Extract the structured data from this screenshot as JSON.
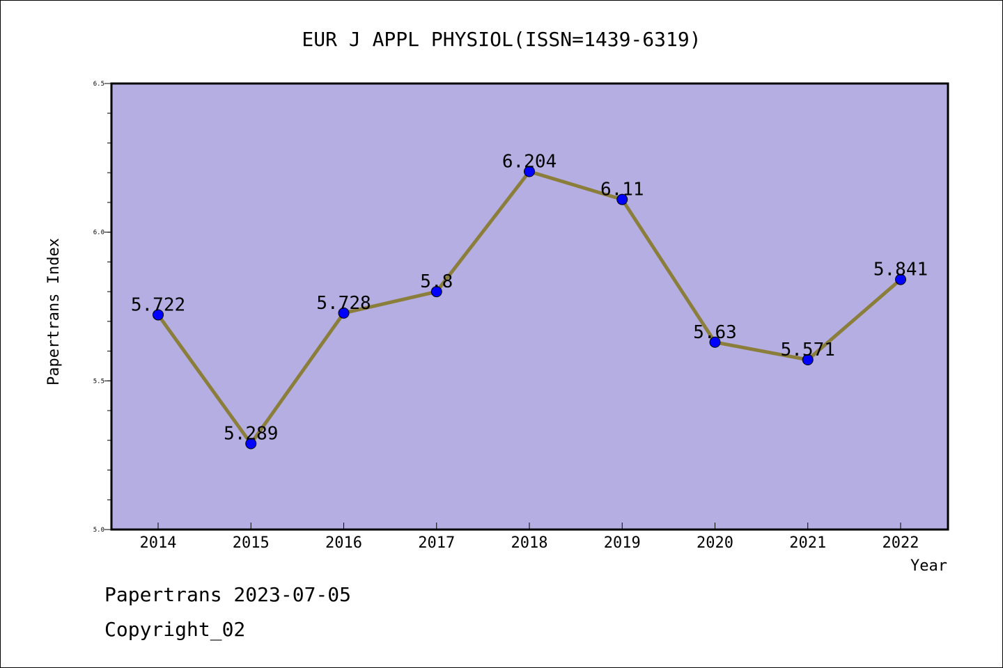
{
  "chart_data": {
    "type": "line",
    "title": "EUR J APPL PHYSIOL(ISSN=1439-6319)",
    "xlabel": "Year",
    "ylabel": "Papertrans Index",
    "categories": [
      "2014",
      "2015",
      "2016",
      "2017",
      "2018",
      "2019",
      "2020",
      "2021",
      "2022"
    ],
    "values": [
      5.722,
      5.289,
      5.728,
      5.8,
      6.204,
      6.11,
      5.63,
      5.571,
      5.841
    ],
    "value_labels": [
      "5.722",
      "5.289",
      "5.728",
      "5.8",
      "6.204",
      "6.11",
      "5.63",
      "5.571",
      "5.841"
    ],
    "ylim": [
      5.0,
      6.5
    ],
    "yticks": [
      5.0,
      5.5,
      6.0,
      6.5
    ],
    "ytick_labels": [
      "5.0",
      "5.5",
      "6.0",
      "6.5"
    ],
    "grid": false,
    "legend": "none",
    "colors": {
      "plot_background": "#b4aee2",
      "line": "#8b7d3a",
      "marker": "#0000ff"
    }
  },
  "footer": {
    "line1": "Papertrans 2023-07-05",
    "line2": "Copyright_02"
  }
}
